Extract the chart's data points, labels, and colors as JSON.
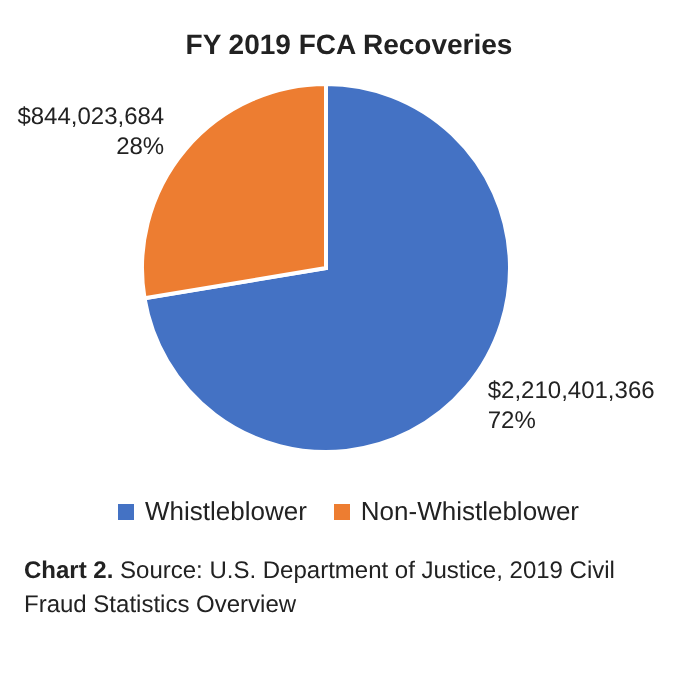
{
  "chart_data": {
    "type": "pie",
    "title": "FY 2019 FCA Recoveries",
    "categories": [
      "Whistleblower",
      "Non-Whistleblower"
    ],
    "values": [
      2210401366,
      844023684
    ],
    "colors": [
      "#4472c4",
      "#ed7d31"
    ],
    "value_labels": [
      "$2,210,401,366\n72%",
      "$844,023,684\n28%"
    ],
    "legend": "bottom",
    "annotations": [
      "Chart 2. Source: U.S. Department of Justice, 2019 Civil Fraud Statistics Overview"
    ]
  }
}
